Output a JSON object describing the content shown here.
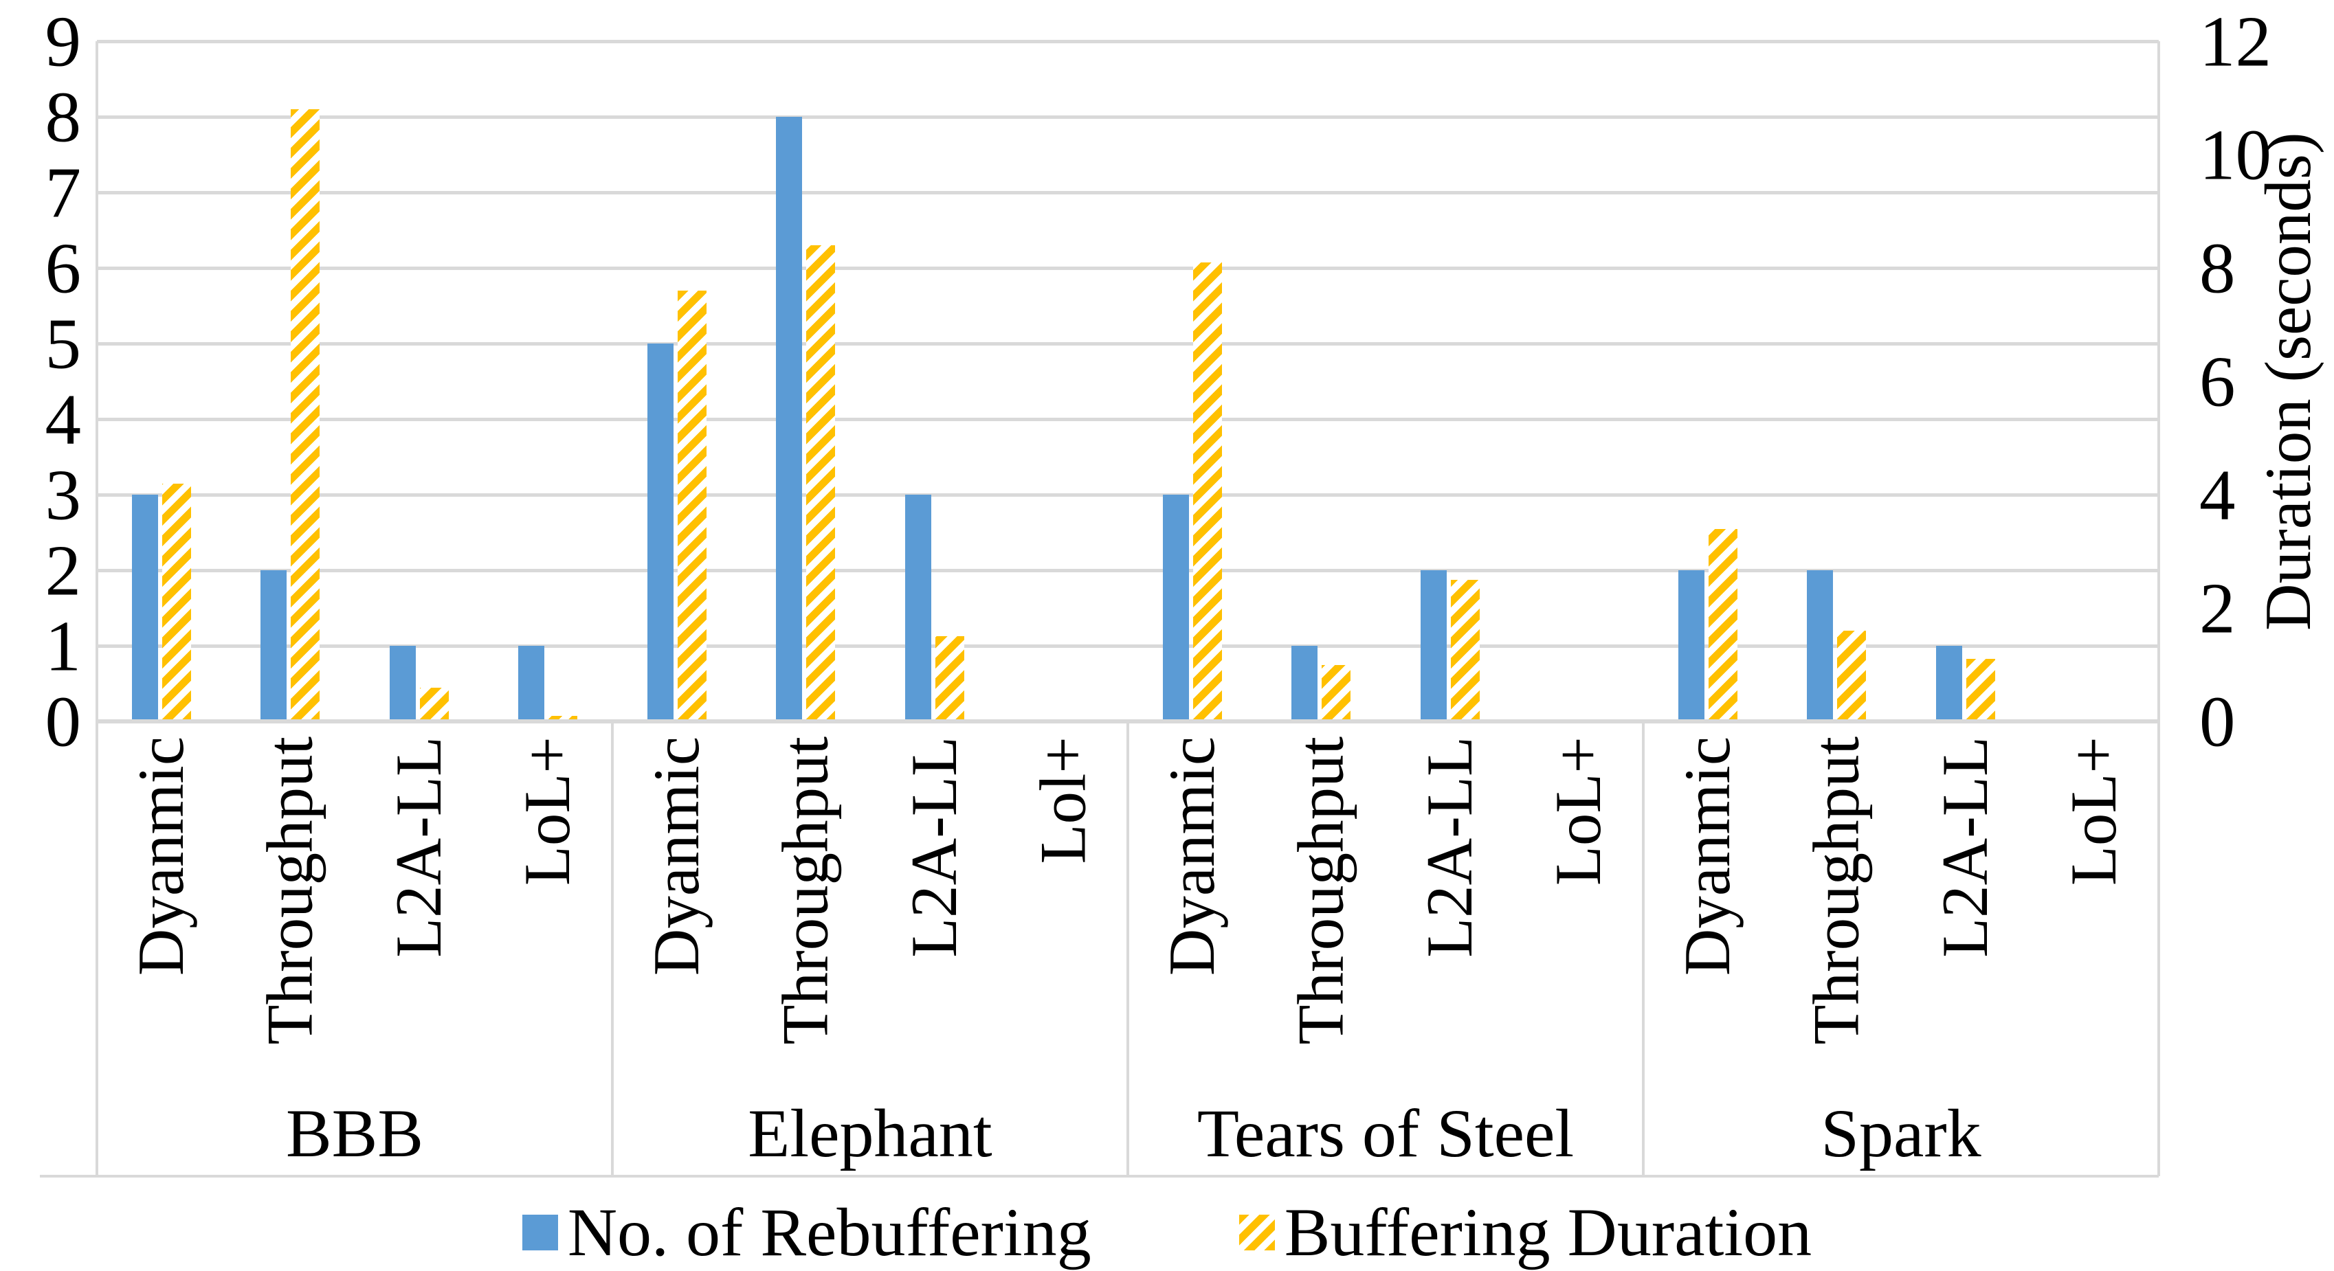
{
  "chart_data": {
    "type": "bar",
    "title": "",
    "groups": [
      "BBB",
      "Elephant",
      "Tears of Steel",
      "Spark"
    ],
    "group_categories": [
      [
        "Dyanmic",
        "Throughput",
        "L2A-LL",
        "LoL+"
      ],
      [
        "Dyanmic",
        "Throughput",
        "L2A-LL",
        "Lol+"
      ],
      [
        "Dyanmic",
        "Throughput",
        "L2A-LL",
        "LoL+"
      ],
      [
        "Dyanmic",
        "Throughput",
        "L2A-LL",
        "LoL+"
      ]
    ],
    "series": [
      {
        "name": "No. of Rebuffering",
        "axis": "left",
        "color": "#5b9bd5",
        "pattern": "solid",
        "values": [
          [
            3,
            2,
            1,
            1
          ],
          [
            5,
            8,
            3,
            0
          ],
          [
            3,
            1,
            2,
            0
          ],
          [
            2,
            2,
            1,
            0
          ]
        ]
      },
      {
        "name": "Buffering Duration",
        "axis": "right",
        "color": "#ffc000",
        "pattern": "diagonal-stripes",
        "values": [
          [
            4.2,
            10.8,
            0.6,
            0.1
          ],
          [
            7.6,
            8.4,
            1.5,
            0
          ],
          [
            8.1,
            1.0,
            2.5,
            0
          ],
          [
            3.4,
            1.6,
            1.1,
            0
          ]
        ]
      }
    ],
    "left_axis": {
      "min": 0,
      "max": 9,
      "step": 1,
      "ticks": [
        "0",
        "1",
        "2",
        "3",
        "4",
        "5",
        "6",
        "7",
        "8",
        "9"
      ]
    },
    "right_axis": {
      "min": 0,
      "max": 12,
      "step": 2,
      "ticks": [
        "0",
        "2",
        "4",
        "6",
        "8",
        "10",
        "12"
      ],
      "title": "Duration (seconds)"
    },
    "legend": {
      "position": "bottom",
      "items": [
        "No. of Rebuffering",
        "Buffering Duration"
      ]
    },
    "grid": true,
    "colors": {
      "bar_blue": "#5b9bd5",
      "bar_yellow": "#ffc000",
      "gridline": "#d9d9d9",
      "text": "#000000"
    }
  }
}
